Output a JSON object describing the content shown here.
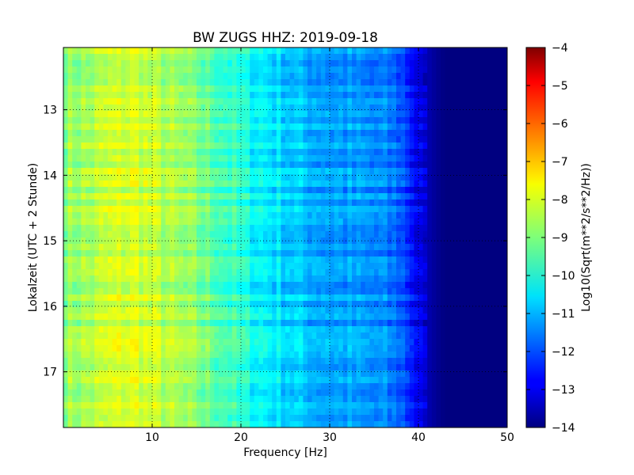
{
  "chart_data": {
    "type": "heatmap",
    "title": "BW ZUGS HHZ: 2019-09-18",
    "xlabel": "Frequency [Hz]",
    "ylabel": "Lokalzeit (UTC + 2 Stunde)",
    "xlim": [
      0,
      50
    ],
    "ylim": [
      17.85,
      12.05
    ],
    "x_ticks": [
      10,
      20,
      30,
      40,
      50
    ],
    "y_ticks": [
      13,
      14,
      15,
      16,
      17
    ],
    "grid": true,
    "colormap": "jet",
    "colorbar": {
      "label": "Log10(Sqrt(m**2/s**2/Hz))",
      "range": [
        -14,
        -4
      ],
      "ticks": [
        -4,
        -5,
        -6,
        -7,
        -8,
        -9,
        -10,
        -11,
        -12,
        -13,
        -14
      ]
    },
    "frequency_profile": {
      "frequency_hz": [
        0,
        3,
        5,
        8,
        9,
        12,
        15,
        18,
        21,
        24,
        27,
        30,
        33,
        36,
        38,
        39,
        40,
        41,
        42,
        43,
        45,
        50
      ],
      "log10_amplitude": [
        -8.8,
        -8.6,
        -8.3,
        -8.1,
        -8.2,
        -8.6,
        -9.0,
        -9.5,
        -10.1,
        -10.5,
        -10.9,
        -11.1,
        -11.3,
        -11.5,
        -11.8,
        -12.3,
        -13.0,
        -13.5,
        -13.8,
        -14.0,
        -14.0,
        -14.0
      ]
    }
  }
}
